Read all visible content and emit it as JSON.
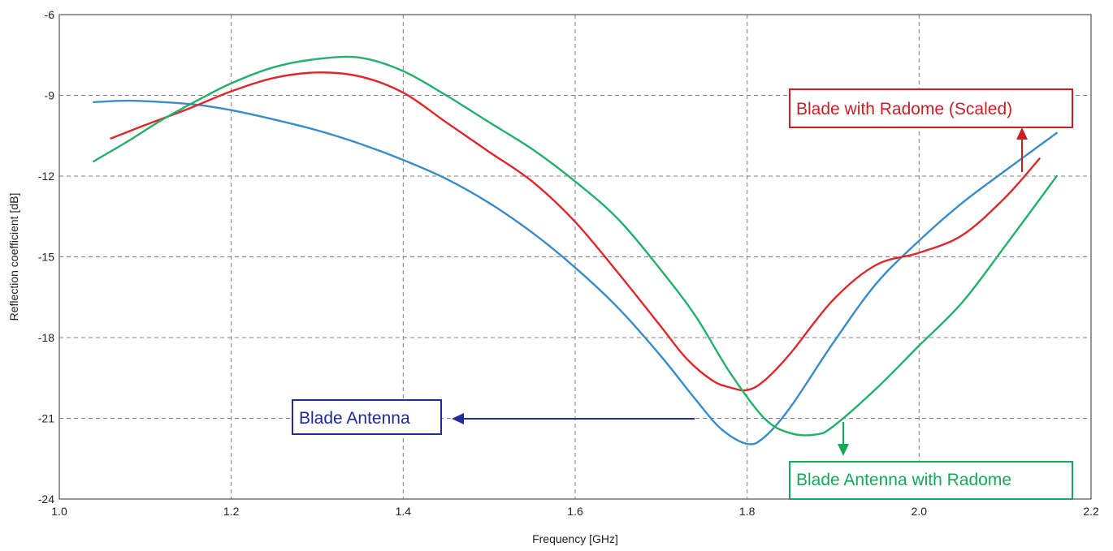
{
  "chart_data": {
    "type": "line",
    "title": "",
    "xlabel": "Frequency [GHz]",
    "ylabel": "Reflection coefficient [dB]",
    "xlim": [
      1.0,
      2.2
    ],
    "ylim": [
      -24,
      -6
    ],
    "xticks": [
      1.0,
      1.2,
      1.4,
      1.6,
      1.8,
      2.0,
      2.2
    ],
    "xtick_labels": [
      "1.0",
      "1.2",
      "1.4",
      "1.6",
      "1.8",
      "2.0",
      "2.2"
    ],
    "yticks": [
      -24,
      -21,
      -18,
      -15,
      -12,
      -9,
      -6
    ],
    "ytick_labels": [
      "-24",
      "-21",
      "-18",
      "-15",
      "-12",
      "-9",
      "-6"
    ],
    "grid": true,
    "series": [
      {
        "name": "Blade Antenna",
        "color": "#3a8cc6",
        "x": [
          1.04,
          1.08,
          1.12,
          1.16,
          1.2,
          1.25,
          1.3,
          1.35,
          1.4,
          1.45,
          1.5,
          1.55,
          1.6,
          1.65,
          1.7,
          1.74,
          1.77,
          1.8,
          1.82,
          1.85,
          1.9,
          1.95,
          2.0,
          2.05,
          2.1,
          2.16
        ],
        "values": [
          -9.25,
          -9.2,
          -9.25,
          -9.35,
          -9.55,
          -9.9,
          -10.3,
          -10.8,
          -11.4,
          -12.1,
          -13.0,
          -14.1,
          -15.4,
          -16.9,
          -18.7,
          -20.3,
          -21.4,
          -21.95,
          -21.7,
          -20.6,
          -18.2,
          -16.0,
          -14.4,
          -13.0,
          -11.8,
          -10.4
        ]
      },
      {
        "name": "Blade with Radome (Scaled)",
        "color": "#e0262a",
        "x": [
          1.06,
          1.1,
          1.15,
          1.2,
          1.25,
          1.3,
          1.35,
          1.4,
          1.45,
          1.5,
          1.55,
          1.6,
          1.65,
          1.7,
          1.73,
          1.76,
          1.78,
          1.8,
          1.82,
          1.85,
          1.9,
          1.95,
          2.0,
          2.05,
          2.1,
          2.14
        ],
        "values": [
          -10.6,
          -10.1,
          -9.5,
          -8.85,
          -8.35,
          -8.15,
          -8.3,
          -8.9,
          -10.0,
          -11.1,
          -12.2,
          -13.7,
          -15.6,
          -17.6,
          -18.8,
          -19.6,
          -19.85,
          -19.95,
          -19.6,
          -18.6,
          -16.6,
          -15.3,
          -14.85,
          -14.2,
          -12.8,
          -11.35
        ]
      },
      {
        "name": "Blade Antenna with Radome",
        "color": "#22b06a",
        "x": [
          1.04,
          1.08,
          1.12,
          1.16,
          1.2,
          1.25,
          1.3,
          1.35,
          1.4,
          1.45,
          1.5,
          1.55,
          1.6,
          1.65,
          1.7,
          1.74,
          1.78,
          1.82,
          1.85,
          1.88,
          1.9,
          1.95,
          2.0,
          2.05,
          2.1,
          2.16
        ],
        "values": [
          -11.45,
          -10.7,
          -9.9,
          -9.2,
          -8.55,
          -7.95,
          -7.65,
          -7.6,
          -8.1,
          -9.0,
          -10.0,
          -11.0,
          -12.2,
          -13.6,
          -15.5,
          -17.2,
          -19.3,
          -21.0,
          -21.55,
          -21.6,
          -21.3,
          -19.9,
          -18.3,
          -16.7,
          -14.6,
          -12.0
        ]
      }
    ],
    "annotations": [
      {
        "text": "Blade with Radome (Scaled)",
        "color": "#cc1f24",
        "arrow": "up"
      },
      {
        "text": "Blade Antenna",
        "color": "#1f2a9c",
        "arrow": "left"
      },
      {
        "text": "Blade Antenna with Radome",
        "color": "#16a85a",
        "arrow": "down"
      }
    ]
  }
}
